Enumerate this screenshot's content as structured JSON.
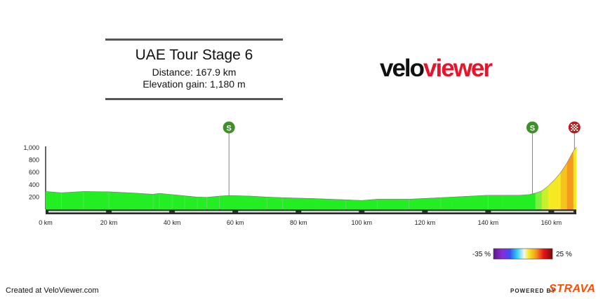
{
  "header": {
    "title": "UAE Tour Stage 6",
    "distance_line": "Distance: 167.9 km",
    "elevation_line": "Elevation gain: 1,180 m"
  },
  "logo": {
    "velo": "velo",
    "viewer": "viewer"
  },
  "footer": {
    "created": "Created at VeloViewer.com",
    "powered": "POWERED BY",
    "strava": "STRAVA"
  },
  "colors": {
    "brand_red": "#e8142b",
    "strava_orange": "#fc4c02",
    "flat_green": "#22ee22",
    "sprint_marker": "#3f8f2c",
    "finish_marker": "#b71c1c"
  },
  "chart_data": {
    "type": "area",
    "xlabel": "",
    "ylabel": "",
    "xlim": [
      0,
      167.9
    ],
    "ylim": [
      0,
      1000
    ],
    "x_ticks": [
      0,
      20,
      40,
      60,
      80,
      100,
      120,
      140,
      160
    ],
    "x_tick_labels": [
      "0 km",
      "20 km",
      "40 km",
      "60 km",
      "80 km",
      "100 km",
      "120 km",
      "140 km",
      "160 km"
    ],
    "y_ticks": [
      200,
      400,
      600,
      800,
      1000
    ],
    "y_tick_labels": [
      "200",
      "400",
      "600",
      "800",
      "1,000"
    ],
    "profile": [
      [
        0,
        290
      ],
      [
        5,
        270
      ],
      [
        12,
        290
      ],
      [
        20,
        285
      ],
      [
        28,
        265
      ],
      [
        34,
        245
      ],
      [
        36,
        260
      ],
      [
        40,
        240
      ],
      [
        44,
        220
      ],
      [
        48,
        200
      ],
      [
        51,
        195
      ],
      [
        55,
        215
      ],
      [
        58,
        225
      ],
      [
        65,
        215
      ],
      [
        70,
        200
      ],
      [
        75,
        190
      ],
      [
        85,
        175
      ],
      [
        95,
        155
      ],
      [
        100,
        145
      ],
      [
        105,
        165
      ],
      [
        115,
        165
      ],
      [
        125,
        190
      ],
      [
        140,
        230
      ],
      [
        150,
        230
      ],
      [
        153,
        240
      ],
      [
        155,
        265
      ],
      [
        157,
        300
      ],
      [
        159,
        380
      ],
      [
        161,
        480
      ],
      [
        163,
        600
      ],
      [
        165,
        760
      ],
      [
        167,
        950
      ],
      [
        167.9,
        1010
      ]
    ],
    "markers": [
      {
        "km": 58,
        "label": "S",
        "kind": "sprint"
      },
      {
        "km": 154,
        "label": "S",
        "kind": "sprint"
      },
      {
        "km": 167.3,
        "label": "",
        "kind": "finish"
      }
    ],
    "gradient_scale": {
      "min_label": "-35 %",
      "max_label": "25 %"
    }
  }
}
